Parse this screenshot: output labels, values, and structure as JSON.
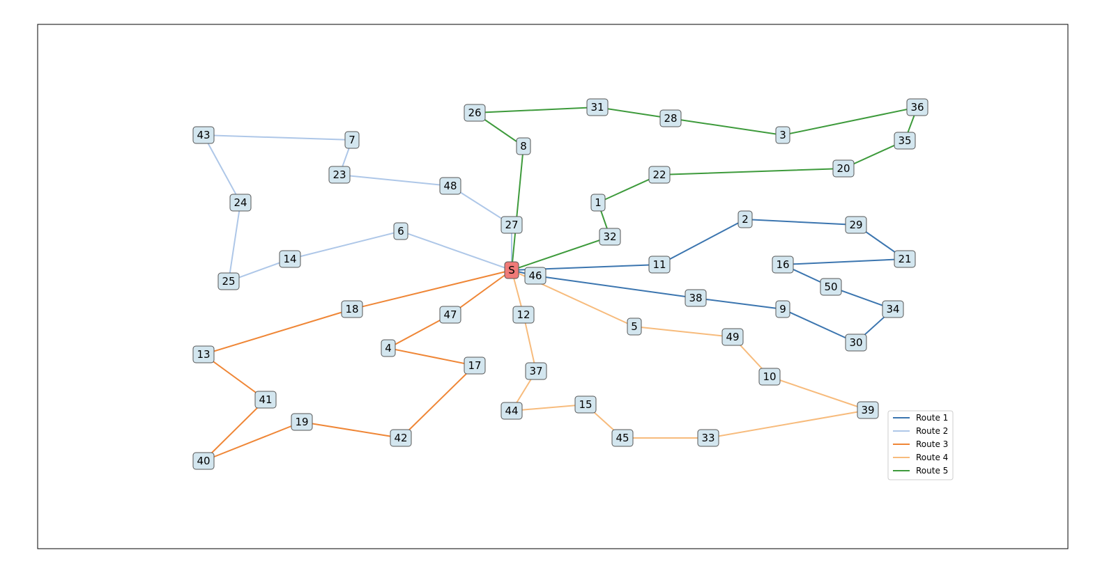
{
  "nodes": [
    {
      "label": "S"
    },
    {
      "label": "1"
    },
    {
      "label": "2"
    },
    {
      "label": "3"
    },
    {
      "label": "4"
    },
    {
      "label": "5"
    },
    {
      "label": "6"
    },
    {
      "label": "7"
    },
    {
      "label": "8"
    },
    {
      "label": "9"
    },
    {
      "label": "10"
    },
    {
      "label": "11"
    },
    {
      "label": "12"
    },
    {
      "label": "13"
    },
    {
      "label": "14"
    },
    {
      "label": "15"
    },
    {
      "label": "16"
    },
    {
      "label": "17"
    },
    {
      "label": "18"
    },
    {
      "label": "19"
    },
    {
      "label": "20"
    },
    {
      "label": "21"
    },
    {
      "label": "22"
    },
    {
      "label": "23"
    },
    {
      "label": "24"
    },
    {
      "label": "25"
    },
    {
      "label": "26"
    },
    {
      "label": "27"
    },
    {
      "label": "28"
    },
    {
      "label": "29"
    },
    {
      "label": "30"
    },
    {
      "label": "31"
    },
    {
      "label": "32"
    },
    {
      "label": "33"
    },
    {
      "label": "34"
    },
    {
      "label": "35"
    },
    {
      "label": "36"
    },
    {
      "label": "37"
    },
    {
      "label": "38"
    },
    {
      "label": "39"
    },
    {
      "label": "40"
    },
    {
      "label": "41"
    },
    {
      "label": "42"
    },
    {
      "label": "43"
    },
    {
      "label": "44"
    },
    {
      "label": "45"
    },
    {
      "label": "46"
    },
    {
      "label": "47"
    },
    {
      "label": "48"
    },
    {
      "label": "49"
    },
    {
      "label": "50"
    }
  ],
  "routes": [
    {
      "name": "Route 1",
      "color": "#3b75af",
      "stops": [
        0,
        11,
        2,
        29,
        21,
        16,
        50,
        34,
        30,
        9,
        38,
        46,
        0
      ]
    },
    {
      "name": "Route 2",
      "color": "#aec7e8",
      "stops": [
        0,
        27,
        48,
        23,
        7,
        43,
        24,
        25,
        14,
        6,
        0
      ]
    },
    {
      "name": "Route 3",
      "color": "#ef8636",
      "stops": [
        0,
        18,
        13,
        41,
        40,
        19,
        42,
        17,
        4,
        47,
        0
      ]
    },
    {
      "name": "Route 4",
      "color": "#f7bb7c",
      "stops": [
        0,
        12,
        37,
        44,
        15,
        45,
        33,
        39,
        10,
        49,
        5,
        0
      ]
    },
    {
      "name": "Route 5",
      "color": "#3d9a3b",
      "stops": [
        0,
        8,
        26,
        31,
        28,
        3,
        36,
        35,
        20,
        22,
        1,
        32,
        0
      ]
    }
  ]
}
